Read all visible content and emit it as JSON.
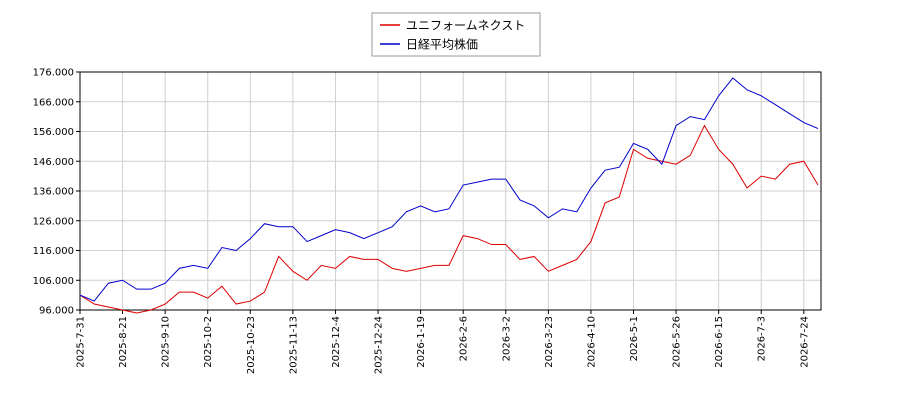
{
  "chart_data": {
    "type": "line",
    "categories": [
      "2025-7-31",
      null,
      null,
      "2025-8-21",
      null,
      null,
      "2025-9-10",
      null,
      null,
      "2025-10-2",
      null,
      null,
      "2025-10-23",
      null,
      null,
      "2025-11-13",
      null,
      null,
      "2025-12-4",
      null,
      null,
      "2025-12-24",
      null,
      null,
      "2026-1-19",
      null,
      null,
      "2026-2-6",
      null,
      null,
      "2026-3-2",
      null,
      null,
      "2026-3-23",
      null,
      null,
      "2026-4-10",
      null,
      null,
      "2026-5-1",
      null,
      null,
      "2026-5-26",
      null,
      null,
      "2026-6-15",
      null,
      null,
      "2026-7-3",
      null,
      null,
      "2026-7-24",
      null
    ],
    "series": [
      {
        "name": "ユニフォームネクスト",
        "color": "#dd0000",
        "values": [
          101,
          98,
          97,
          96,
          95,
          96,
          98,
          102,
          102,
          100,
          104,
          98,
          99,
          102,
          114,
          109,
          106,
          111,
          110,
          114,
          113,
          113,
          110,
          109,
          110,
          111,
          111,
          121,
          120,
          118,
          118,
          113,
          114,
          109,
          111,
          113,
          119,
          132,
          134,
          150,
          147,
          146,
          145,
          148,
          158,
          150,
          145,
          137,
          141,
          140,
          145,
          146,
          138
        ]
      },
      {
        "name": "日経平均株価",
        "color": "#0000cc",
        "values": [
          101,
          99,
          105,
          106,
          103,
          103,
          105,
          110,
          111,
          110,
          117,
          116,
          120,
          125,
          124,
          124,
          119,
          121,
          123,
          122,
          120,
          122,
          124,
          129,
          131,
          129,
          130,
          138,
          139,
          140,
          140,
          133,
          131,
          127,
          130,
          129,
          137,
          143,
          144,
          152,
          150,
          145,
          158,
          161,
          160,
          168,
          174,
          170,
          168,
          165,
          162,
          159,
          157
        ]
      }
    ],
    "ylim": [
      96,
      176
    ],
    "yticks": [
      {
        "value": 96,
        "label": "96.000"
      },
      {
        "value": 106,
        "label": "106.000"
      },
      {
        "value": 116,
        "label": "116.000"
      },
      {
        "value": 126,
        "label": "126.000"
      },
      {
        "value": 136,
        "label": "136.000"
      },
      {
        "value": 146,
        "label": "146.000"
      },
      {
        "value": 156,
        "label": "156.000"
      },
      {
        "value": 166,
        "label": "166.000"
      },
      {
        "value": 176,
        "label": "176.000"
      }
    ],
    "grid": true,
    "legend": "top"
  }
}
